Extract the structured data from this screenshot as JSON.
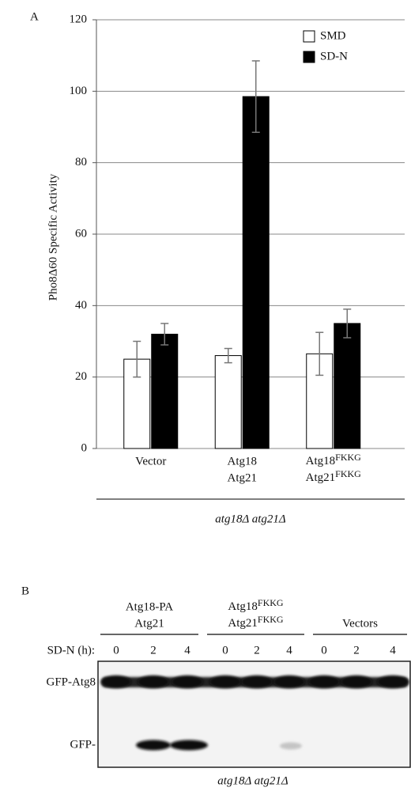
{
  "panel_a_label": "A",
  "chart_data": {
    "type": "bar",
    "y_label": "Pho8Δ60 Specific Activity",
    "categories": [
      [
        "Vector"
      ],
      [
        "Atg18",
        "Atg21"
      ],
      [
        [
          "Atg18",
          "FKKG"
        ],
        [
          "Atg21",
          "FKKG"
        ]
      ]
    ],
    "series": [
      {
        "name": "SMD",
        "color": "#ffffff",
        "values": [
          25,
          26,
          26.5
        ],
        "errors": [
          5,
          2,
          6
        ]
      },
      {
        "name": "SD-N",
        "color": "#000000",
        "values": [
          32,
          98.5,
          35
        ],
        "errors": [
          3,
          10,
          4
        ]
      }
    ],
    "ylim": [
      0,
      120
    ],
    "yticks": [
      0,
      20,
      40,
      60,
      80,
      100,
      120
    ],
    "grid": true,
    "legend": "upper right",
    "strain": "atg18Δ atg21Δ"
  },
  "blot": {
    "panel_label": "B",
    "groups": [
      [
        "Atg18-PA",
        "Atg21"
      ],
      [
        [
          "Atg18",
          "FKKG"
        ],
        [
          "Atg21",
          "FKKG"
        ]
      ],
      [
        "Vectors"
      ]
    ],
    "time_header": "SD-N (h):",
    "times": [
      "0",
      "2",
      "4",
      "0",
      "2",
      "4",
      "0",
      "2",
      "4"
    ],
    "bands": [
      "GFP-Atg8",
      "GFP-"
    ],
    "strain": "atg18Δ atg21Δ"
  }
}
